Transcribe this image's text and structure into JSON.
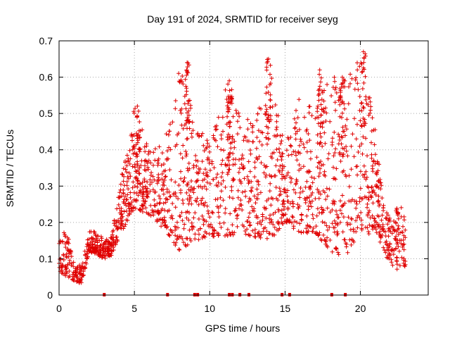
{
  "chart_data": {
    "type": "scatter",
    "title": "Day 191 of 2024, SRMTID for receiver seyg",
    "xlabel": "GPS time / hours",
    "ylabel": "SRMTID / TECUs",
    "xlim": [
      0,
      24.5
    ],
    "ylim": [
      0,
      0.7
    ],
    "x_ticks": [
      0,
      5,
      10,
      15,
      20
    ],
    "y_ticks": [
      0,
      0.1,
      0.2,
      0.3,
      0.4,
      0.5,
      0.6,
      0.7
    ],
    "x_tick_labels": [
      "0",
      "5",
      "10",
      "15",
      "20"
    ],
    "y_tick_labels": [
      "0",
      "0.1",
      "0.2",
      "0.3",
      "0.4",
      "0.5",
      "0.6",
      "0.7"
    ],
    "grid": true,
    "marker": "plus",
    "marker_color": "#e00000",
    "baseline_markers_x": [
      3.0,
      7.2,
      9.0,
      9.2,
      11.3,
      11.5,
      12.0,
      12.6,
      14.8,
      15.3,
      18.1,
      19.0
    ],
    "series": [
      {
        "name": "SRMTID",
        "envelope_hours": [
          0,
          0.5,
          1.0,
          1.5,
          2.0,
          2.5,
          3.0,
          3.5,
          4.0,
          4.5,
          5.0,
          6.0,
          7.0,
          8.0,
          9.0,
          10.0,
          11.0,
          12.0,
          13.0,
          14.0,
          15.0,
          16.0,
          17.0,
          18.0,
          19.0,
          20.0,
          20.5,
          21.0,
          21.5,
          22.0,
          22.5,
          23.0
        ],
        "envelope_low": [
          0.06,
          0.05,
          0.04,
          0.03,
          0.12,
          0.11,
          0.1,
          0.11,
          0.16,
          0.2,
          0.24,
          0.22,
          0.18,
          0.12,
          0.15,
          0.16,
          0.16,
          0.17,
          0.16,
          0.15,
          0.2,
          0.17,
          0.17,
          0.12,
          0.1,
          0.18,
          0.16,
          0.18,
          0.12,
          0.08,
          0.07,
          0.08
        ],
        "envelope_high": [
          0.16,
          0.18,
          0.09,
          0.08,
          0.18,
          0.18,
          0.15,
          0.16,
          0.3,
          0.4,
          0.52,
          0.4,
          0.42,
          0.64,
          0.49,
          0.42,
          0.59,
          0.5,
          0.47,
          0.65,
          0.42,
          0.56,
          0.5,
          0.62,
          0.6,
          0.67,
          0.6,
          0.45,
          0.26,
          0.22,
          0.25,
          0.23
        ],
        "peaks": [
          {
            "x": 5.2,
            "y": 0.52
          },
          {
            "x": 8.5,
            "y": 0.64
          },
          {
            "x": 11.3,
            "y": 0.59
          },
          {
            "x": 13.9,
            "y": 0.65
          },
          {
            "x": 17.3,
            "y": 0.62
          },
          {
            "x": 18.8,
            "y": 0.6
          },
          {
            "x": 20.2,
            "y": 0.67
          }
        ],
        "n_points": 1900,
        "seed": 191
      }
    ]
  }
}
